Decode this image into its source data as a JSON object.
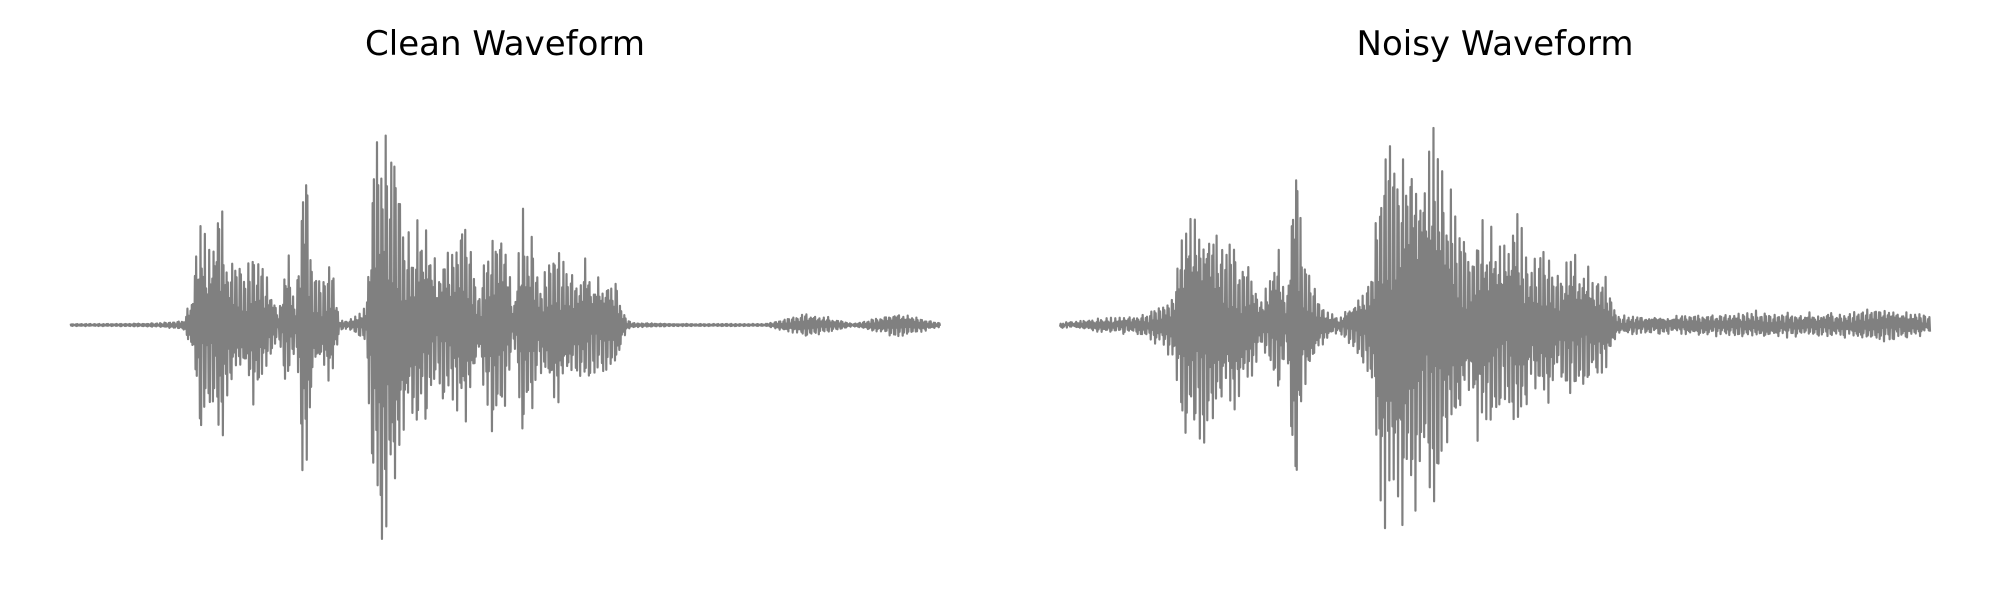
{
  "chart_data": [
    {
      "type": "line",
      "title": "Clean Waveform",
      "xlabel": "",
      "ylabel": "",
      "axes_visible": false,
      "grid": false,
      "color": "#808080",
      "ylim": [
        -1.0,
        1.0
      ],
      "x": [
        0.0,
        0.05,
        0.1,
        0.13,
        0.14,
        0.15,
        0.16,
        0.17,
        0.18,
        0.19,
        0.2,
        0.21,
        0.22,
        0.23,
        0.24,
        0.25,
        0.26,
        0.27,
        0.28,
        0.29,
        0.3,
        0.31,
        0.32,
        0.33,
        0.34,
        0.35,
        0.36,
        0.37,
        0.38,
        0.39,
        0.4,
        0.41,
        0.42,
        0.43,
        0.44,
        0.45,
        0.46,
        0.47,
        0.48,
        0.49,
        0.5,
        0.51,
        0.52,
        0.53,
        0.54,
        0.55,
        0.56,
        0.57,
        0.58,
        0.59,
        0.6,
        0.61,
        0.62,
        0.63,
        0.64,
        0.65,
        0.7,
        0.75,
        0.8,
        0.85,
        0.9,
        0.95,
        1.0
      ],
      "series": [
        {
          "values": [
            0.005,
            0.005,
            0.008,
            0.02,
            0.15,
            0.6,
            0.35,
            0.65,
            0.4,
            0.3,
            0.25,
            0.38,
            0.3,
            0.2,
            0.05,
            0.35,
            0.08,
            0.95,
            0.25,
            0.2,
            0.3,
            0.02,
            0.02,
            0.05,
            0.1,
            0.95,
            1.0,
            0.85,
            0.6,
            0.45,
            0.52,
            0.48,
            0.3,
            0.4,
            0.35,
            0.5,
            0.42,
            0.15,
            0.45,
            0.55,
            0.4,
            0.1,
            0.55,
            0.45,
            0.2,
            0.35,
            0.4,
            0.3,
            0.25,
            0.35,
            0.25,
            0.2,
            0.28,
            0.18,
            0.02,
            0.01,
            0.005,
            0.005,
            0.005,
            0.06,
            0.005,
            0.06,
            0.01
          ]
        }
      ]
    },
    {
      "type": "line",
      "title": "Noisy Waveform",
      "xlabel": "",
      "ylabel": "",
      "axes_visible": false,
      "grid": false,
      "color": "#808080",
      "ylim": [
        -1.0,
        1.0
      ],
      "x": [
        0.0,
        0.05,
        0.1,
        0.13,
        0.14,
        0.15,
        0.16,
        0.17,
        0.18,
        0.19,
        0.2,
        0.21,
        0.22,
        0.23,
        0.24,
        0.25,
        0.26,
        0.27,
        0.28,
        0.29,
        0.3,
        0.31,
        0.32,
        0.33,
        0.34,
        0.35,
        0.36,
        0.37,
        0.38,
        0.39,
        0.4,
        0.41,
        0.42,
        0.43,
        0.44,
        0.45,
        0.46,
        0.47,
        0.48,
        0.49,
        0.5,
        0.51,
        0.52,
        0.53,
        0.54,
        0.55,
        0.56,
        0.57,
        0.58,
        0.59,
        0.6,
        0.61,
        0.62,
        0.63,
        0.64,
        0.65,
        0.7,
        0.75,
        0.8,
        0.85,
        0.9,
        0.95,
        1.0
      ],
      "series": [
        {
          "values": [
            0.01,
            0.03,
            0.05,
            0.15,
            0.45,
            0.62,
            0.55,
            0.58,
            0.45,
            0.38,
            0.4,
            0.3,
            0.25,
            0.12,
            0.2,
            0.4,
            0.1,
            0.95,
            0.3,
            0.25,
            0.1,
            0.05,
            0.03,
            0.08,
            0.12,
            0.2,
            0.3,
            0.98,
            0.95,
            0.9,
            0.98,
            0.95,
            0.8,
            0.9,
            0.7,
            0.65,
            0.45,
            0.35,
            0.55,
            0.48,
            0.5,
            0.35,
            0.55,
            0.5,
            0.3,
            0.35,
            0.4,
            0.25,
            0.3,
            0.35,
            0.3,
            0.25,
            0.28,
            0.2,
            0.05,
            0.04,
            0.04,
            0.05,
            0.06,
            0.05,
            0.06,
            0.08,
            0.04
          ]
        }
      ]
    }
  ]
}
